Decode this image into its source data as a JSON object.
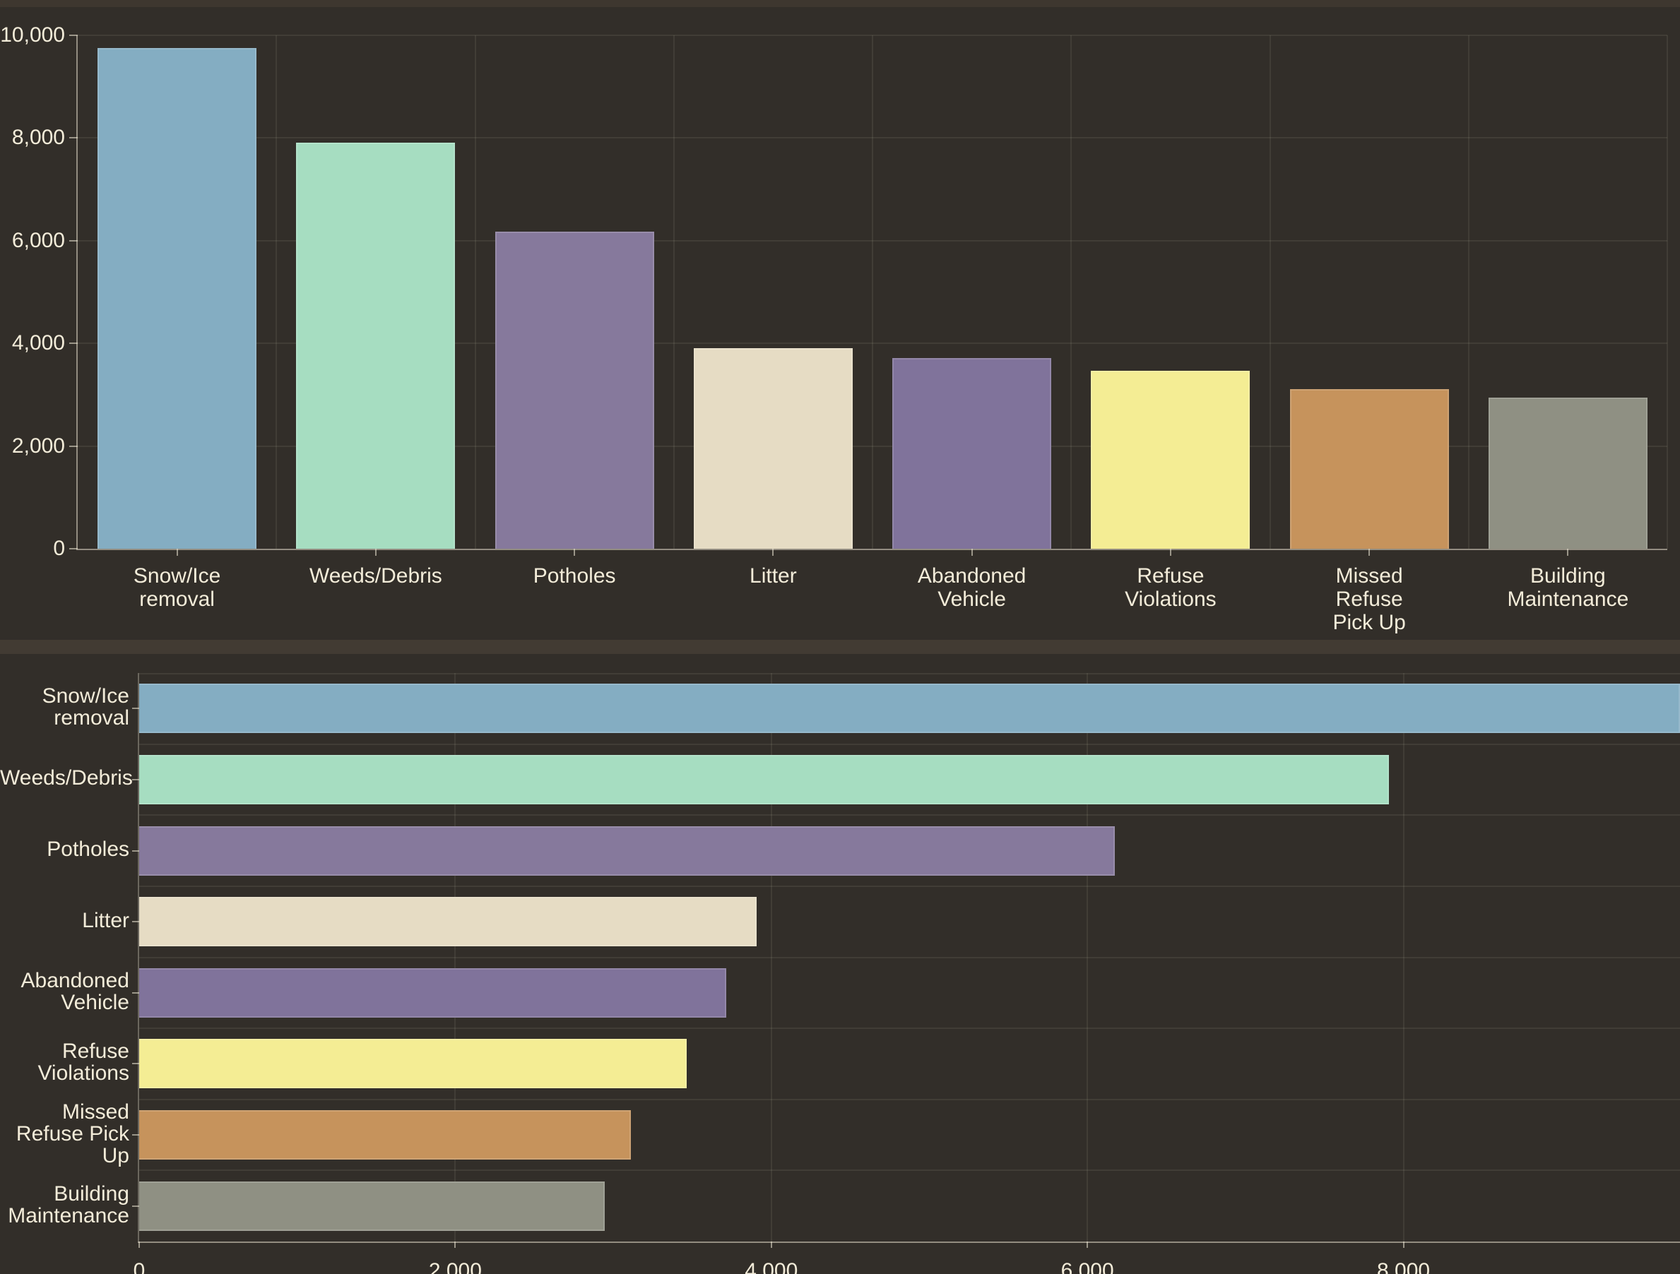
{
  "theme": {
    "background": "#322e29",
    "top_strip_color": "#3e372f",
    "separator_color": "#423b33",
    "text_color": "#f3ecd9",
    "axis_color": "rgba(243,236,217,0.5)",
    "grid_color": "rgba(243,236,217,0.08)"
  },
  "chart_data": [
    {
      "type": "bar",
      "orientation": "vertical",
      "title": "",
      "categories": [
        "Snow/Ice removal",
        "Weeds/Debris",
        "Potholes",
        "Litter",
        "Abandoned Vehicle",
        "Refuse Violations",
        "Missed Refuse Pick Up",
        "Building Maintenance"
      ],
      "category_lines": [
        [
          "Snow/Ice",
          "removal"
        ],
        [
          "Weeds/Debris"
        ],
        [
          "Potholes"
        ],
        [
          "Litter"
        ],
        [
          "Abandoned",
          "Vehicle"
        ],
        [
          "Refuse",
          "Violations"
        ],
        [
          "Missed",
          "Refuse",
          "Pick Up"
        ],
        [
          "Building",
          "Maintenance"
        ]
      ],
      "values": [
        9750,
        7910,
        6175,
        3905,
        3715,
        3465,
        3110,
        2945
      ],
      "colors": [
        "#84adc2",
        "#a6ddc1",
        "#86799c",
        "#e6dcc4",
        "#80739b",
        "#f4ed94",
        "#c6935c",
        "#8f9083"
      ],
      "ylabel": "",
      "xlabel": "",
      "ylim": [
        0,
        10000
      ],
      "yticks": [
        {
          "value": 0,
          "label": "0"
        },
        {
          "value": 2000,
          "label": "2,000"
        },
        {
          "value": 4000,
          "label": "4,000"
        },
        {
          "value": 6000,
          "label": "6,000"
        },
        {
          "value": 8000,
          "label": "8,000"
        },
        {
          "value": 10000,
          "label": "10,000"
        }
      ],
      "grid": true,
      "legend": false
    },
    {
      "type": "bar",
      "orientation": "horizontal",
      "title": "",
      "categories": [
        "Snow/Ice removal",
        "Weeds/Debris",
        "Potholes",
        "Litter",
        "Abandoned Vehicle",
        "Refuse Violations",
        "Missed Refuse Pick Up",
        "Building Maintenance"
      ],
      "category_lines": [
        [
          "Snow/Ice",
          "removal"
        ],
        [
          "Weeds/Debris"
        ],
        [
          "Potholes"
        ],
        [
          "Litter"
        ],
        [
          "Abandoned",
          "Vehicle"
        ],
        [
          "Refuse",
          "Violations"
        ],
        [
          "Missed",
          "Refuse Pick",
          "Up"
        ],
        [
          "Building",
          "Maintenance"
        ]
      ],
      "values": [
        9750,
        7910,
        6175,
        3905,
        3715,
        3465,
        3110,
        2945
      ],
      "colors": [
        "#84adc2",
        "#a6ddc1",
        "#86799c",
        "#e6dcc4",
        "#80739b",
        "#f4ed94",
        "#c6935c",
        "#8f9083"
      ],
      "ylabel": "",
      "xlabel": "",
      "xlim": [
        0,
        9750
      ],
      "xticks": [
        {
          "value": 0,
          "label": "0"
        },
        {
          "value": 2000,
          "label": "2,000"
        },
        {
          "value": 4000,
          "label": "4,000"
        },
        {
          "value": 6000,
          "label": "6,000"
        },
        {
          "value": 8000,
          "label": "8,000"
        }
      ],
      "grid": true,
      "legend": false
    }
  ]
}
